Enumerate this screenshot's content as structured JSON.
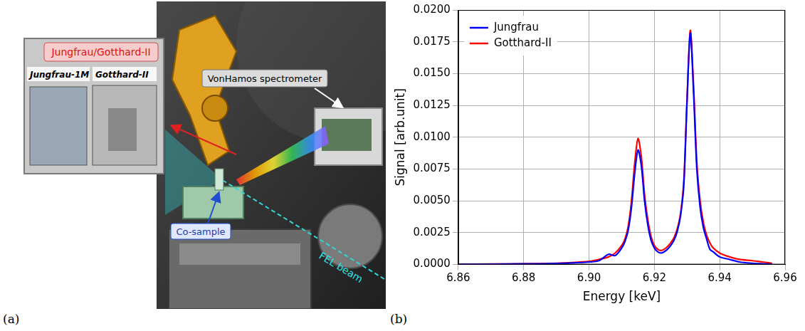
{
  "panel_a": {
    "letter": "(a)",
    "labels": {
      "detector_group": "Jungfrau/Gotthard-II",
      "detector_1": "Jungfrau-1M",
      "detector_2": "Gotthard-II",
      "spectrometer": "VonHamos spectrometer",
      "sample": "Co-sample",
      "beam": "FEL beam"
    }
  },
  "panel_b": {
    "letter": "(b)"
  },
  "chart_data": {
    "type": "line",
    "x_label": "Energy [keV]",
    "y_label": "Signal [arb.unit]",
    "x": [
      6.86,
      6.87,
      6.88,
      6.89,
      6.895,
      6.9,
      6.903,
      6.906,
      6.908,
      6.91,
      6.911,
      6.912,
      6.913,
      6.914,
      6.915,
      6.916,
      6.917,
      6.918,
      6.919,
      6.92,
      6.921,
      6.922,
      6.923,
      6.924,
      6.925,
      6.926,
      6.927,
      6.928,
      6.929,
      6.93,
      6.931,
      6.932,
      6.933,
      6.934,
      6.935,
      6.936,
      6.937,
      6.938,
      6.94,
      6.943,
      6.946,
      6.95,
      6.953,
      6.956
    ],
    "xlim": [
      6.86,
      6.96
    ],
    "xticks": [
      6.86,
      6.88,
      {
        "value": 6.9,
        "label": "6.90"
      },
      6.92,
      6.94,
      6.96
    ],
    "ylim": [
      0,
      0.02
    ],
    "yticks": [
      {
        "value": 0,
        "label": "0.0000"
      },
      0.0025,
      {
        "value": 0.005,
        "label": "0.0050"
      },
      0.0075,
      {
        "value": 0.01,
        "label": "0.0100"
      },
      0.0125,
      {
        "value": 0.015,
        "label": "0.0150"
      },
      0.0175,
      {
        "value": 0.02,
        "label": "0.0200"
      }
    ],
    "grid": true,
    "legend": "upper left",
    "series": [
      {
        "name": "Jungfrau",
        "color": "#0000ff",
        "values": [
          1e-05,
          3e-05,
          5e-05,
          8e-05,
          0.00012,
          0.0002,
          0.0003,
          0.0008,
          0.0007,
          0.0013,
          0.0018,
          0.0027,
          0.0045,
          0.0072,
          0.009,
          0.0078,
          0.005,
          0.0031,
          0.0019,
          0.0013,
          0.001,
          0.0009,
          0.001,
          0.0012,
          0.0015,
          0.0019,
          0.0026,
          0.0038,
          0.0062,
          0.0128,
          0.0182,
          0.0135,
          0.0075,
          0.0045,
          0.0029,
          0.002,
          0.0012,
          0.001,
          0.0006,
          0.0004,
          0.0002,
          0.0001,
          6e-05,
          3e-05
        ]
      },
      {
        "name": "Gotthard-II",
        "color": "#ff0000",
        "values": [
          2e-05,
          4e-05,
          6e-05,
          0.0001,
          0.00015,
          0.00025,
          0.0004,
          0.0006,
          0.0009,
          0.0015,
          0.002,
          0.003,
          0.005,
          0.008,
          0.0099,
          0.0085,
          0.0055,
          0.0035,
          0.0022,
          0.0015,
          0.0012,
          0.0011,
          0.0012,
          0.0014,
          0.0017,
          0.0021,
          0.0028,
          0.004,
          0.0065,
          0.013,
          0.0184,
          0.014,
          0.008,
          0.005,
          0.0033,
          0.0023,
          0.0017,
          0.0013,
          0.0009,
          0.0006,
          0.0004,
          0.0003,
          0.0002,
          0.0001
        ]
      }
    ]
  }
}
